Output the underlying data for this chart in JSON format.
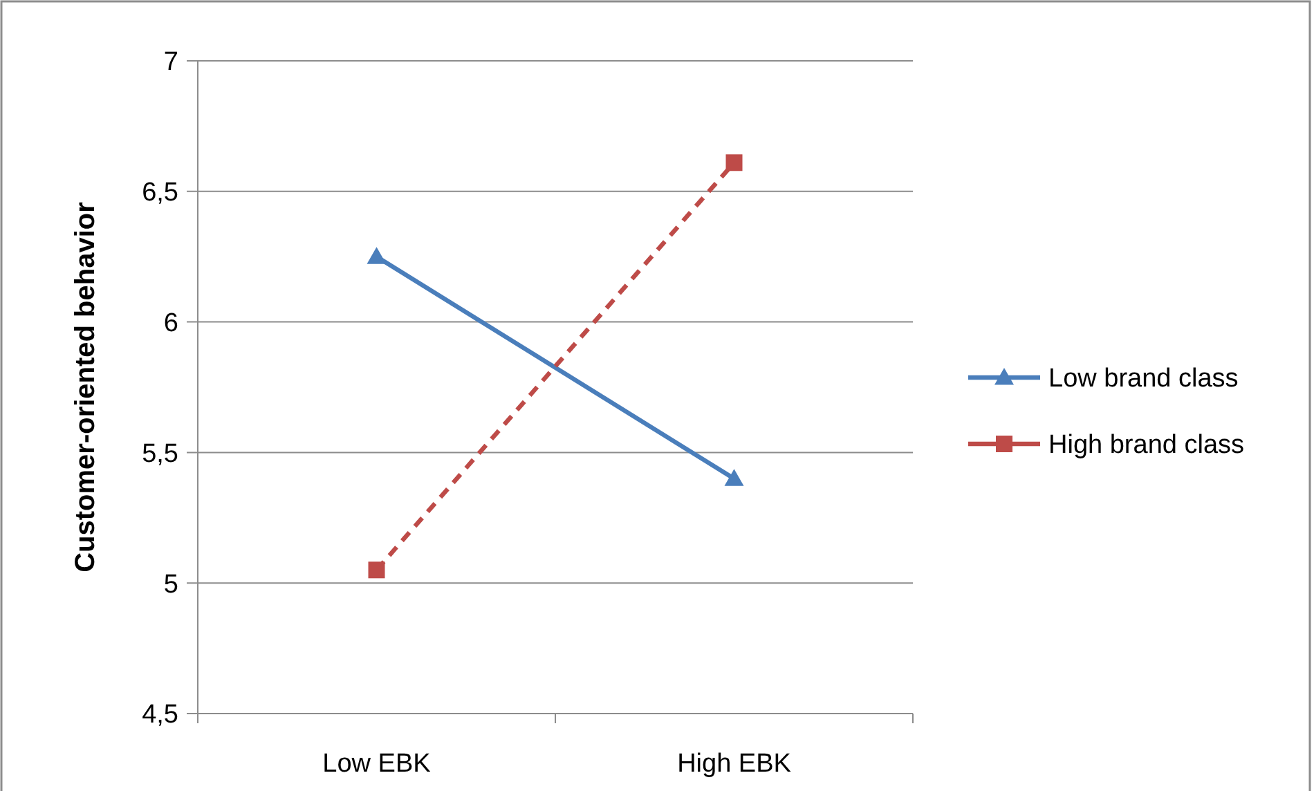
{
  "chart_data": {
    "type": "line",
    "ylabel": "Customer-oriented behavior",
    "categories": [
      "Low EBK",
      "High EBK"
    ],
    "series": [
      {
        "name": "Low brand class",
        "color": "#4a7ebb",
        "values": [
          6.25,
          5.4
        ],
        "marker": "triangle",
        "line_style": "solid"
      },
      {
        "name": "High brand class",
        "color": "#be4b48",
        "values": [
          5.05,
          6.61
        ],
        "marker": "square",
        "line_style": "dashed"
      }
    ],
    "ylim": [
      4.5,
      7
    ],
    "yticks": [
      {
        "value": 4.5,
        "label": "4,5"
      },
      5,
      {
        "value": 5.5,
        "label": "5,5"
      },
      6,
      {
        "value": 6.5,
        "label": "6,5"
      },
      7
    ],
    "grid": "y",
    "legend": "right"
  }
}
